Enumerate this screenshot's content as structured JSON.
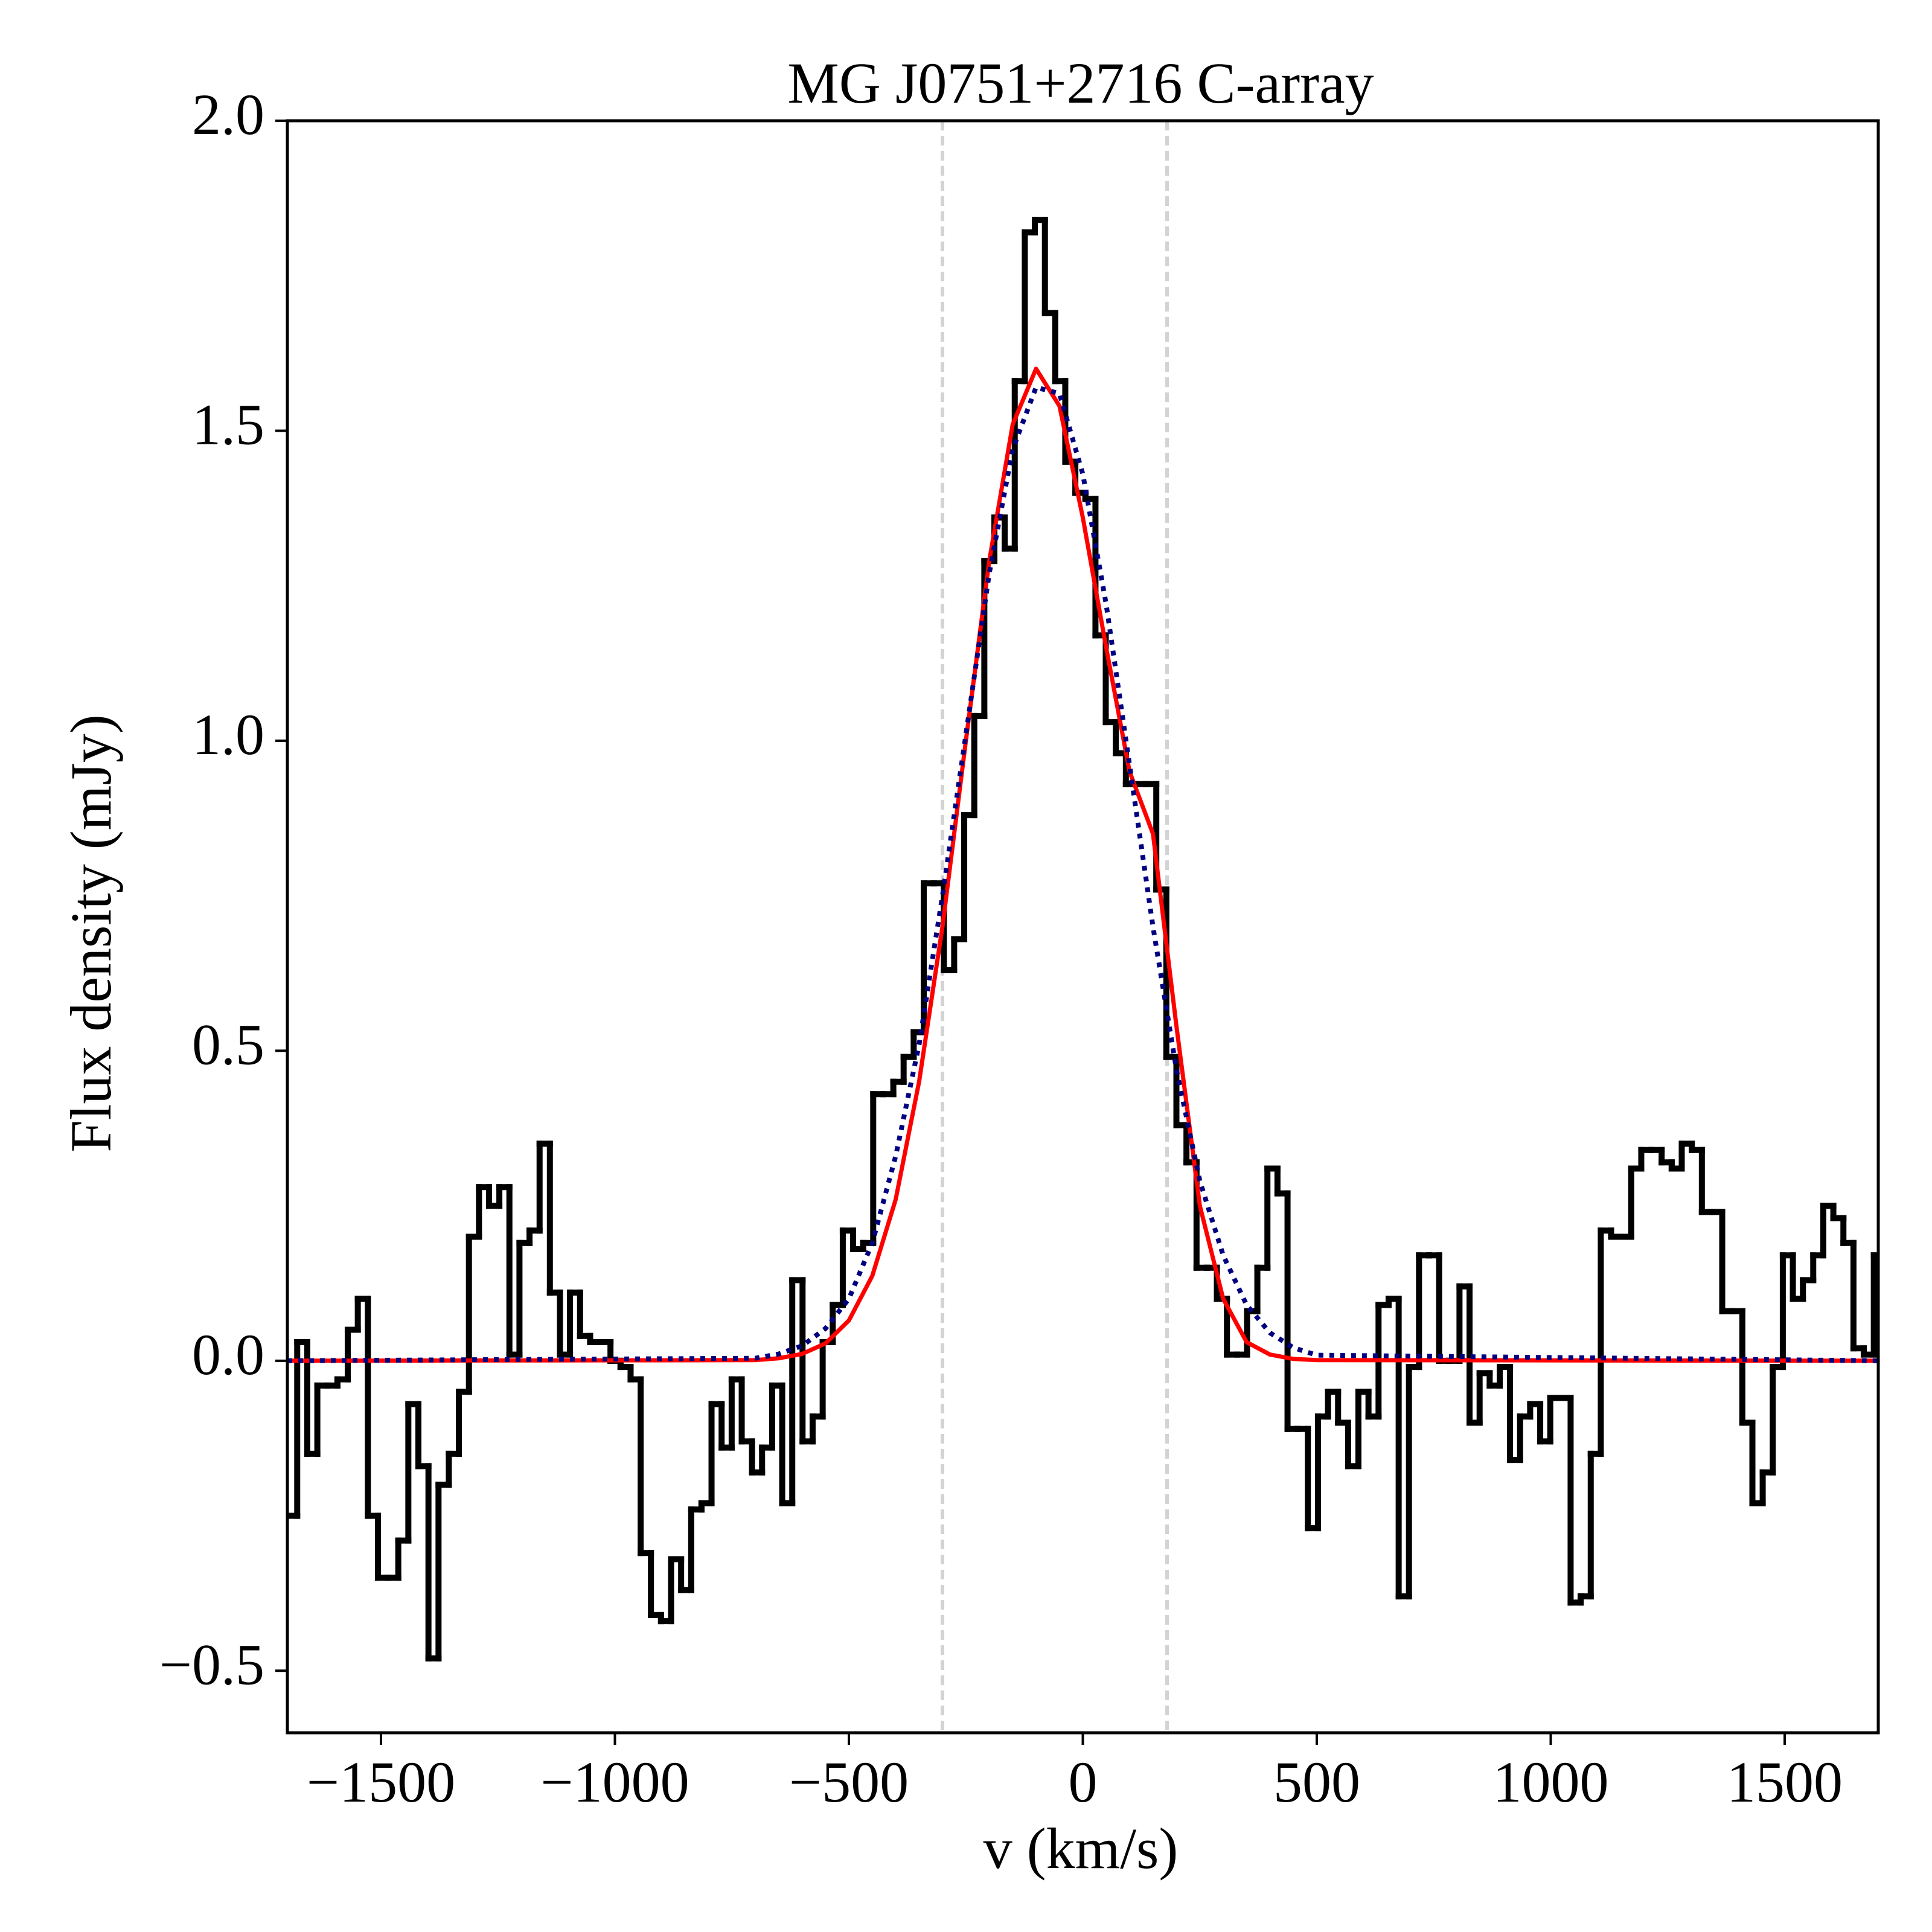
{
  "chart_data": {
    "type": "line",
    "title": "MG J0751+2716 C-array",
    "xlabel": "v (km/s)",
    "ylabel": "Flux density (mJy)",
    "xlim": [
      -1700,
      1700
    ],
    "ylim": [
      -0.6,
      2.0
    ],
    "xticks": [
      {
        "value": -1500,
        "label": "−1500"
      },
      {
        "value": -1000,
        "label": "−1000"
      },
      {
        "value": -500,
        "label": "−500"
      },
      0,
      500,
      1000,
      1500
    ],
    "yticks": [
      {
        "value": -0.5,
        "label": "−0.5"
      },
      {
        "value": 0,
        "label": "0.0"
      },
      0.5,
      {
        "value": 1,
        "label": "1.0"
      },
      1.5,
      {
        "value": 2,
        "label": "2.0"
      }
    ],
    "vlines": [
      -300,
      180
    ],
    "vline_color": "#d3d3d3",
    "series": [
      {
        "color": "#000000",
        "drawstyle": "steps-mid",
        "x": [
          -1690,
          -1668,
          -1647,
          -1625,
          -1604,
          -1582,
          -1560,
          -1539,
          -1517,
          -1496,
          -1474,
          -1452,
          -1431,
          -1409,
          -1388,
          -1366,
          -1344,
          -1323,
          -1301,
          -1280,
          -1258,
          -1236,
          -1215,
          -1193,
          -1172,
          -1150,
          -1128,
          -1107,
          -1085,
          -1064,
          -1042,
          -1020,
          -999,
          -977,
          -956,
          -934,
          -912,
          -891,
          -869,
          -848,
          -826,
          -804,
          -783,
          -761,
          -740,
          -718,
          -696,
          -675,
          -653,
          -632,
          -610,
          -588,
          -567,
          -545,
          -524,
          -502,
          -480,
          -459,
          -437,
          -416,
          -394,
          -372,
          -351,
          -329,
          -308,
          -286,
          -264,
          -243,
          -221,
          -200,
          -178,
          -156,
          -135,
          -113,
          -92,
          -70,
          -48,
          -27,
          -5,
          16,
          38,
          60,
          81,
          103,
          124,
          146,
          168,
          189,
          211,
          232,
          254,
          276,
          297,
          319,
          340,
          362,
          384,
          405,
          427,
          448,
          470,
          492,
          513,
          535,
          556,
          578,
          600,
          621,
          643,
          664,
          686,
          708,
          729,
          751,
          772,
          794,
          816,
          837,
          859,
          880,
          902,
          924,
          945,
          967,
          988,
          1010,
          1032,
          1053,
          1075,
          1096,
          1118,
          1140,
          1161,
          1183,
          1204,
          1226,
          1248,
          1269,
          1291,
          1312,
          1334,
          1356,
          1377,
          1399,
          1420,
          1442,
          1464,
          1485,
          1507,
          1528,
          1550,
          1572,
          1593,
          1615,
          1636,
          1658,
          1680,
          1701
        ],
        "values": [
          -0.25,
          0.03,
          -0.15,
          -0.04,
          -0.04,
          -0.03,
          0.05,
          0.1,
          -0.25,
          -0.35,
          -0.35,
          -0.29,
          -0.07,
          -0.17,
          -0.48,
          -0.2,
          -0.15,
          -0.05,
          0.2,
          0.28,
          0.25,
          0.28,
          0.01,
          0.19,
          0.21,
          0.35,
          0.11,
          0.01,
          0.11,
          0.04,
          0.03,
          0.03,
          0.0,
          -0.01,
          -0.03,
          -0.31,
          -0.41,
          -0.42,
          -0.32,
          -0.37,
          -0.24,
          -0.23,
          -0.07,
          -0.14,
          -0.03,
          -0.13,
          -0.18,
          -0.14,
          -0.04,
          -0.23,
          0.13,
          -0.13,
          -0.09,
          0.03,
          0.09,
          0.21,
          0.18,
          0.19,
          0.43,
          0.43,
          0.45,
          0.49,
          0.53,
          0.77,
          0.77,
          0.63,
          0.68,
          0.88,
          1.04,
          1.29,
          1.36,
          1.31,
          1.58,
          1.82,
          1.84,
          1.69,
          1.58,
          1.45,
          1.4,
          1.39,
          1.17,
          1.03,
          0.98,
          0.93,
          0.93,
          0.93,
          0.76,
          0.49,
          0.38,
          0.32,
          0.15,
          0.15,
          0.1,
          0.01,
          0.01,
          0.08,
          0.15,
          0.31,
          0.27,
          -0.11,
          -0.11,
          -0.27,
          -0.09,
          -0.05,
          -0.1,
          -0.17,
          -0.05,
          -0.09,
          0.09,
          0.1,
          -0.38,
          -0.01,
          0.17,
          0.17,
          0.0,
          0.0,
          0.12,
          -0.1,
          -0.02,
          -0.04,
          -0.01,
          -0.16,
          -0.09,
          -0.07,
          -0.13,
          -0.06,
          -0.06,
          -0.39,
          -0.38,
          -0.15,
          0.21,
          0.2,
          0.2,
          0.31,
          0.34,
          0.34,
          0.32,
          0.31,
          0.35,
          0.34,
          0.24,
          0.24,
          0.08,
          0.08,
          -0.1,
          -0.23,
          -0.18,
          -0.01,
          0.17,
          0.1,
          0.13,
          0.17,
          0.25,
          0.23,
          0.19,
          0.02,
          0.01,
          0.17
        ]
      },
      {
        "color": "#ff0000",
        "drawstyle": "solid",
        "x": [
          -1700,
          -700,
          -650,
          -600,
          -550,
          -500,
          -450,
          -400,
          -350,
          -300,
          -250,
          -200,
          -150,
          -100,
          -50,
          0,
          50,
          100,
          150,
          200,
          250,
          300,
          350,
          400,
          450,
          500,
          1700
        ],
        "values": [
          0,
          0.001,
          0.004,
          0.011,
          0.028,
          0.065,
          0.137,
          0.26,
          0.45,
          0.7,
          1.0,
          1.29,
          1.51,
          1.6,
          1.54,
          1.36,
          1.15,
          0.95,
          0.85,
          0.54,
          0.25,
          0.1,
          0.03,
          0.01,
          0.003,
          0.001,
          0
        ]
      },
      {
        "color": "#000080",
        "drawstyle": "dotted",
        "x": [
          -1700,
          -700,
          -650,
          -600,
          -550,
          -500,
          -450,
          -400,
          -350,
          -300,
          -250,
          -200,
          -150,
          -100,
          -50,
          0,
          50,
          100,
          150,
          200,
          250,
          300,
          350,
          400,
          450,
          500,
          1700
        ],
        "values": [
          0,
          0.004,
          0.011,
          0.024,
          0.052,
          0.1,
          0.19,
          0.33,
          0.51,
          0.75,
          1.01,
          1.27,
          1.47,
          1.57,
          1.56,
          1.43,
          1.22,
          0.96,
          0.7,
          0.47,
          0.29,
          0.17,
          0.09,
          0.045,
          0.021,
          0.009,
          0
        ]
      }
    ]
  }
}
